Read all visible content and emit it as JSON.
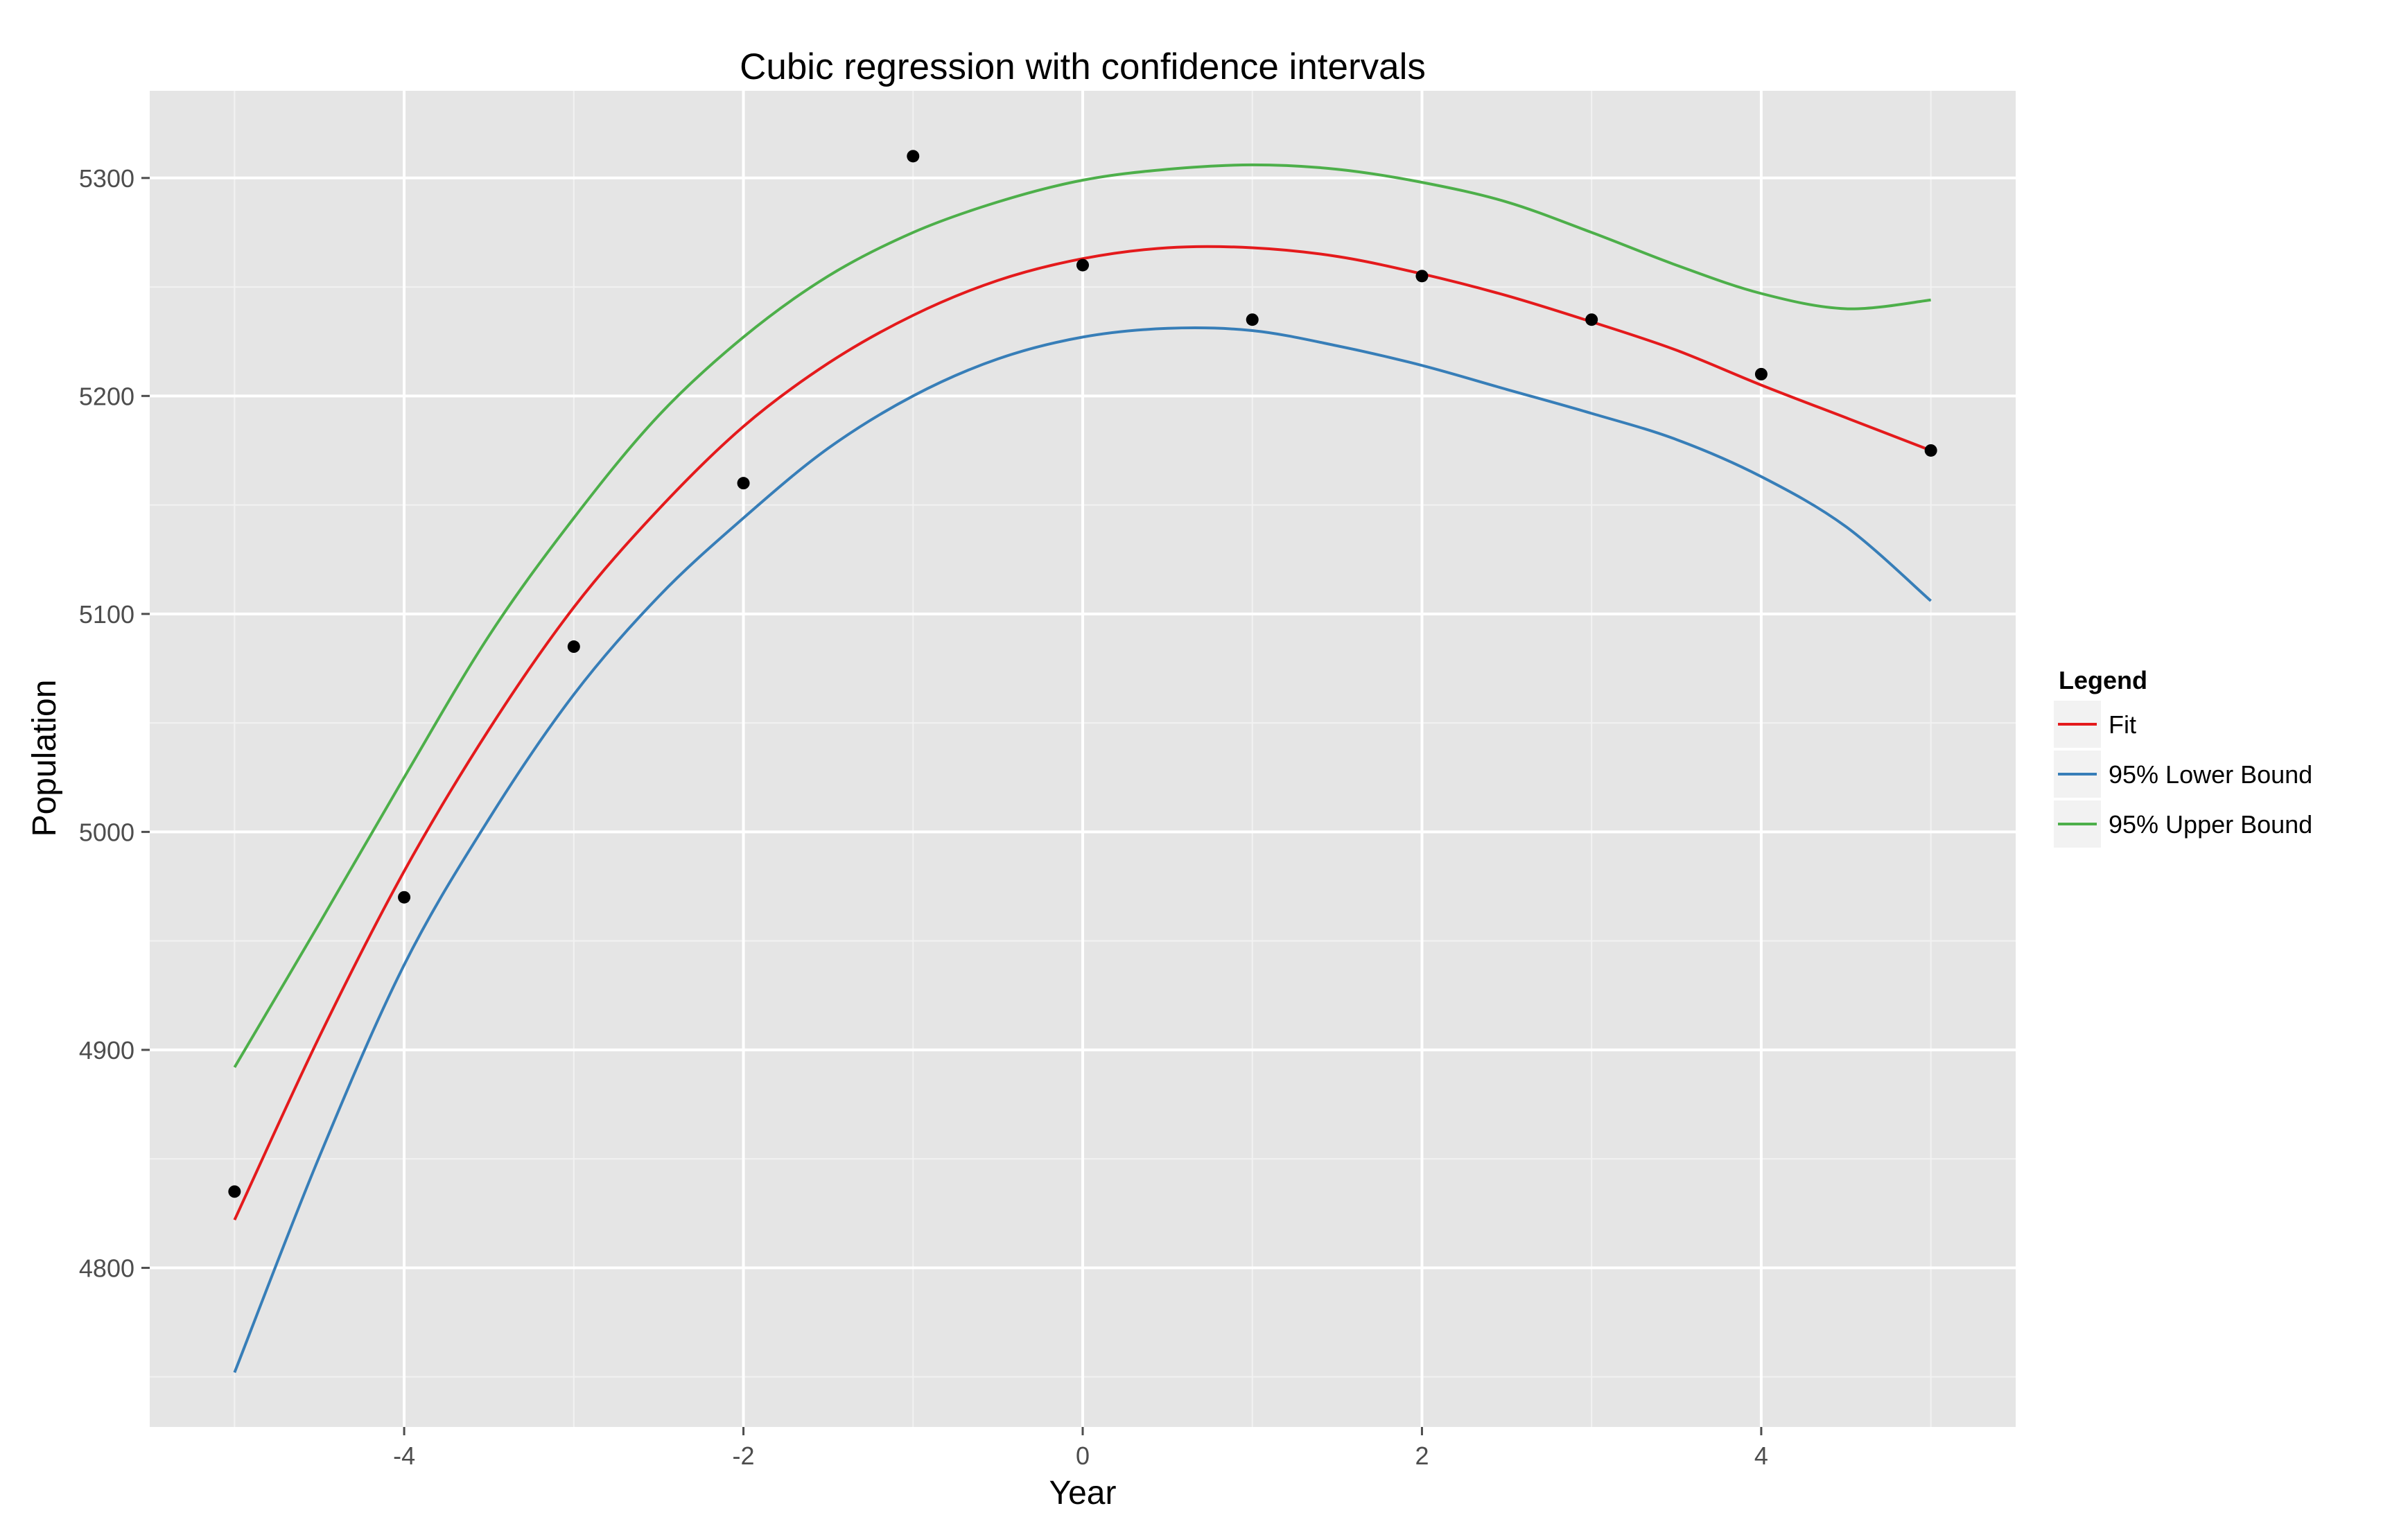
{
  "chart_data": {
    "type": "line",
    "title": "Cubic regression with confidence intervals",
    "xlabel": "Year",
    "ylabel": "Population",
    "xlim": [
      -5.5,
      5.5
    ],
    "ylim": [
      4727,
      5340
    ],
    "x_ticks": [
      -4,
      -2,
      0,
      2,
      4
    ],
    "x_tick_labels": [
      "-4",
      "-2",
      "0",
      "2",
      "4"
    ],
    "y_ticks": [
      4800,
      4900,
      5000,
      5100,
      5200,
      5300
    ],
    "y_tick_labels": [
      "4800",
      "4900",
      "5000",
      "5100",
      "5200",
      "5300"
    ],
    "grid": true,
    "panel_background": "#e5e5e5",
    "legend": {
      "title": "Legend",
      "position": "right"
    },
    "points": {
      "color": "#000000",
      "x": [
        -5,
        -4,
        -3,
        -2,
        -1,
        0,
        1,
        2,
        3,
        4,
        5
      ],
      "y": [
        4835,
        4970,
        5085,
        5160,
        5310,
        5260,
        5235,
        5255,
        5235,
        5210,
        5175
      ]
    },
    "series": [
      {
        "name": "Fit",
        "color": "#e41a1c",
        "x": [
          -5,
          -4.5,
          -4,
          -3.5,
          -3,
          -2.5,
          -2,
          -1.5,
          -1,
          -0.5,
          0,
          0.5,
          1,
          1.5,
          2,
          2.5,
          3,
          3.5,
          4,
          4.5,
          5
        ],
        "y": [
          4822,
          4906,
          4982,
          5047,
          5103,
          5148,
          5186,
          5215,
          5237,
          5253,
          5263,
          5268,
          5268,
          5264,
          5256,
          5246,
          5234,
          5221,
          5205,
          5190,
          5175
        ]
      },
      {
        "name": "95% Lower Bound",
        "color": "#377eb8",
        "x": [
          -5,
          -4.5,
          -4,
          -3.5,
          -3,
          -2.5,
          -2,
          -1.5,
          -1,
          -0.5,
          0,
          0.5,
          1,
          1.5,
          2,
          2.5,
          3,
          3.5,
          4,
          4.5,
          5
        ],
        "y": [
          4752,
          4851,
          4939,
          5006,
          5063,
          5108,
          5144,
          5176,
          5200,
          5217,
          5227,
          5231,
          5230,
          5223,
          5214,
          5203,
          5192,
          5180,
          5163,
          5140,
          5106
        ]
      },
      {
        "name": "95% Upper Bound",
        "color": "#4daf4a",
        "x": [
          -5,
          -4.5,
          -4,
          -3.5,
          -3,
          -2.5,
          -2,
          -1.5,
          -1,
          -0.5,
          0,
          0.5,
          1,
          1.5,
          2,
          2.5,
          3,
          3.5,
          4,
          4.5,
          5
        ],
        "y": [
          4892,
          4958,
          5025,
          5090,
          5144,
          5191,
          5227,
          5255,
          5275,
          5289,
          5299,
          5304,
          5306,
          5304,
          5298,
          5289,
          5275,
          5260,
          5247,
          5240,
          5244
        ]
      }
    ]
  }
}
